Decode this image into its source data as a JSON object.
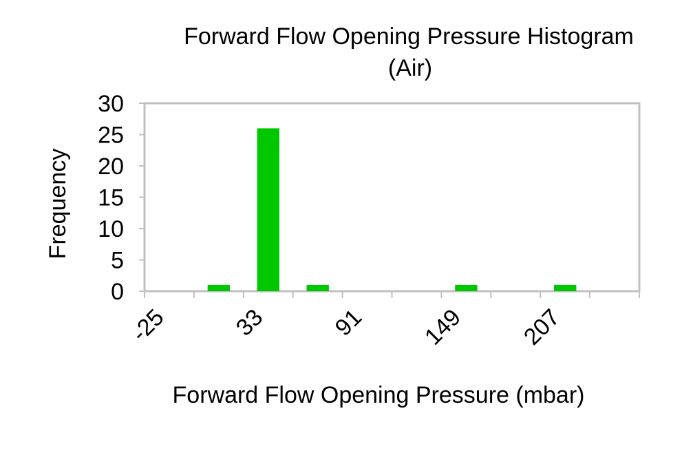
{
  "chart_data": {
    "type": "bar",
    "title_line1": "Forward Flow Opening Pressure Histogram",
    "title_line2": "(Air)",
    "xlabel": "Forward Flow Opening Pressure (mbar)",
    "ylabel": "Frequency",
    "bin_edges": [
      -25,
      4,
      33,
      62,
      91,
      120,
      149,
      178,
      207,
      236
    ],
    "x_tick_labels": [
      "-25",
      "33",
      "91",
      "149",
      "207"
    ],
    "y_ticks": [
      0,
      5,
      10,
      15,
      20,
      25,
      30
    ],
    "ylim": [
      0,
      30
    ],
    "values": [
      0,
      1,
      26,
      1,
      0,
      0,
      1,
      0,
      1,
      0
    ],
    "bar_color": "#00c800",
    "frame_color": "#c0c0c0",
    "grid": false,
    "legend": "none"
  }
}
